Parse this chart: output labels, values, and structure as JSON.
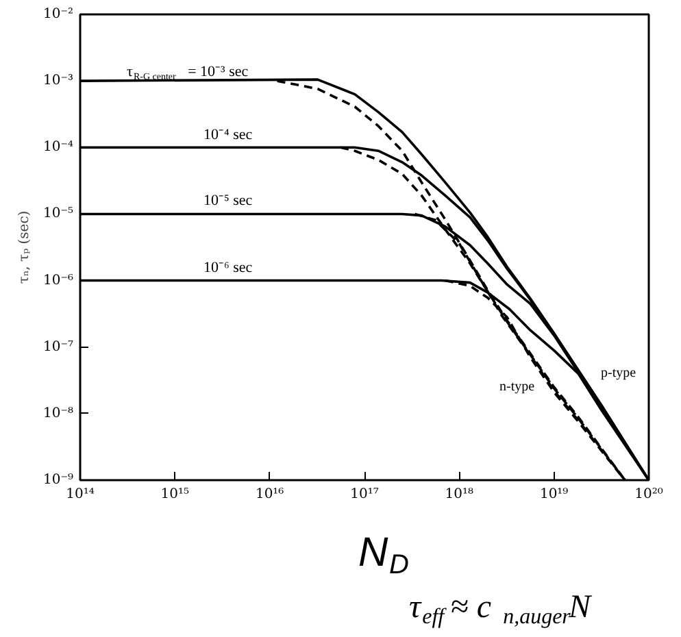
{
  "chart_data": {
    "type": "line",
    "xlabel": "N$_{D}$",
    "ylabel": "τₙ, τₚ (sec)",
    "log": "xy",
    "xlim": [
      100000000000000.0,
      1e+20
    ],
    "ylim": [
      1e-09,
      0.01
    ],
    "xticks": [
      {
        "value": 100000000000000.0,
        "label": "10¹⁴"
      },
      {
        "value": 1000000000000000.0,
        "label": "10¹⁵"
      },
      {
        "value": 1e+16,
        "label": "10¹⁶"
      },
      {
        "value": 1e+17,
        "label": "10¹⁷"
      },
      {
        "value": 1e+18,
        "label": "10¹⁸"
      },
      {
        "value": 1e+19,
        "label": "10¹⁹"
      },
      {
        "value": 1e+20,
        "label": "10²⁰"
      }
    ],
    "yticks": [
      {
        "value": 1e-09,
        "label": "10⁻⁹"
      },
      {
        "value": 1e-08,
        "label": "10⁻⁸"
      },
      {
        "value": 1e-07,
        "label": "10⁻⁷"
      },
      {
        "value": 1e-06,
        "label": "10⁻⁶"
      },
      {
        "value": 1e-05,
        "label": "10⁻⁵"
      },
      {
        "value": 0.0001,
        "label": "10⁻⁴"
      },
      {
        "value": 0.001,
        "label": "10⁻³"
      },
      {
        "value": 0.01,
        "label": "10⁻²"
      }
    ],
    "series": [
      {
        "color": "#000000",
        "line_style": "solid",
        "x": [
          100000000000000.0,
          3.2e+16,
          7.9e+16,
          1.4e+17,
          2.5e+17,
          4e+17,
          7.1e+17,
          1.3e+18,
          2e+18,
          3.2e+18,
          5.6e+18,
          1e+19,
          3.2e+19,
          1e+20
        ],
        "values": [
          0.001,
          0.00105,
          0.00063,
          0.00034,
          0.00017,
          7.9e-05,
          3e-05,
          1.05e-05,
          4.5e-06,
          1.6e-06,
          5.4e-07,
          1.6e-07,
          1.3e-08,
          1e-09
        ]
      },
      {
        "color": "#000000",
        "line_style": "dashed",
        "x": [
          1.2e+16,
          3.2e+16,
          7.9e+16,
          1.4e+17,
          2.5e+17,
          4e+17,
          7.1e+17,
          1.3e+18,
          2e+18,
          3.2e+18,
          1e+19,
          1.8e+19,
          5.6e+19
        ],
        "values": [
          0.001,
          0.00076,
          0.00041,
          0.00021,
          8.9e-05,
          3e-05,
          8.3e-06,
          2e-06,
          7.1e-07,
          2.5e-07,
          2.5e-08,
          8.9e-09,
          1e-09
        ]
      },
      {
        "color": "#000000",
        "line_style": "solid",
        "x": [
          100000000000000.0,
          7.9e+16,
          1.4e+17,
          2.5e+17,
          4e+17,
          7.1e+17,
          1.3e+18,
          2e+18,
          3.2e+18,
          5.6e+18,
          1e+19,
          3.2e+19,
          1e+20
        ],
        "values": [
          0.0001,
          0.0001,
          8.9e-05,
          6e-05,
          3.8e-05,
          1.9e-05,
          8.9e-06,
          4e-06,
          1.5e-06,
          5.2e-07,
          1.6e-07,
          1.3e-08,
          1e-09
        ]
      },
      {
        "color": "#000000",
        "line_style": "dashed",
        "x": [
          5.6e+16,
          7.9e+16,
          1.4e+17,
          2.5e+17,
          4e+17,
          7.1e+17,
          1.3e+18,
          2e+18,
          3.2e+18,
          1e+19,
          1.8e+19,
          5.6e+19
        ],
        "values": [
          0.0001,
          8.9e-05,
          6.5e-05,
          4e-05,
          1.9e-05,
          5.9e-06,
          1.8e-06,
          6.8e-07,
          2.4e-07,
          2.4e-08,
          8.5e-09,
          1e-09
        ]
      },
      {
        "color": "#000000",
        "line_style": "solid",
        "x": [
          100000000000000.0,
          2.5e+17,
          4e+17,
          7.1e+17,
          1.3e+18,
          2e+18,
          3.2e+18,
          5.6e+18,
          1e+19,
          3.2e+19,
          1e+20
        ],
        "values": [
          1e-05,
          1e-05,
          9.5e-06,
          6.5e-06,
          3.4e-06,
          1.8e-06,
          8.7e-07,
          4.5e-07,
          1.5e-07,
          1.2e-08,
          1e-09
        ]
      },
      {
        "color": "#000000",
        "line_style": "dashed",
        "x": [
          3.4e+17,
          5.6e+17,
          1e+18,
          1.7e+18,
          2.8e+18,
          5.6e+18,
          1e+19,
          1.8e+19,
          5.6e+19
        ],
        "values": [
          1e-05,
          8.1e-06,
          3.6e-06,
          1e-06,
          3e-07,
          7.6e-08,
          2.2e-08,
          7.9e-09,
          1e-09
        ]
      },
      {
        "color": "#000000",
        "line_style": "solid",
        "x": [
          100000000000000.0,
          6.5e+17,
          1.3e+18,
          2e+18,
          3.4e+18,
          5.6e+18,
          1e+19,
          1.8e+19,
          3.2e+19,
          1e+20
        ],
        "values": [
          1e-06,
          1e-06,
          9.3e-07,
          6.6e-07,
          3.7e-07,
          1.8e-07,
          8.9e-08,
          4e-08,
          1.1e-08,
          1e-09
        ]
      },
      {
        "color": "#000000",
        "line_style": "dashed",
        "x": [
          7.1e+17,
          1.3e+18,
          2e+18,
          3.2e+18,
          5.6e+18,
          1e+19,
          1.8e+19,
          5.6e+19
        ],
        "values": [
          1e-06,
          8.3e-07,
          5.5e-07,
          2.8e-07,
          7.1e-08,
          2.1e-08,
          7.6e-09,
          1e-09
        ]
      }
    ],
    "annotations": [
      "τ$_{R-G center}$ = 10⁻³ sec",
      "10⁻⁴ sec",
      "10⁻⁵ sec",
      "10⁻⁶ sec",
      "p-type",
      "n-type",
      "τ$_{eff}$ ≈ c$_{n,auger}$N"
    ]
  }
}
